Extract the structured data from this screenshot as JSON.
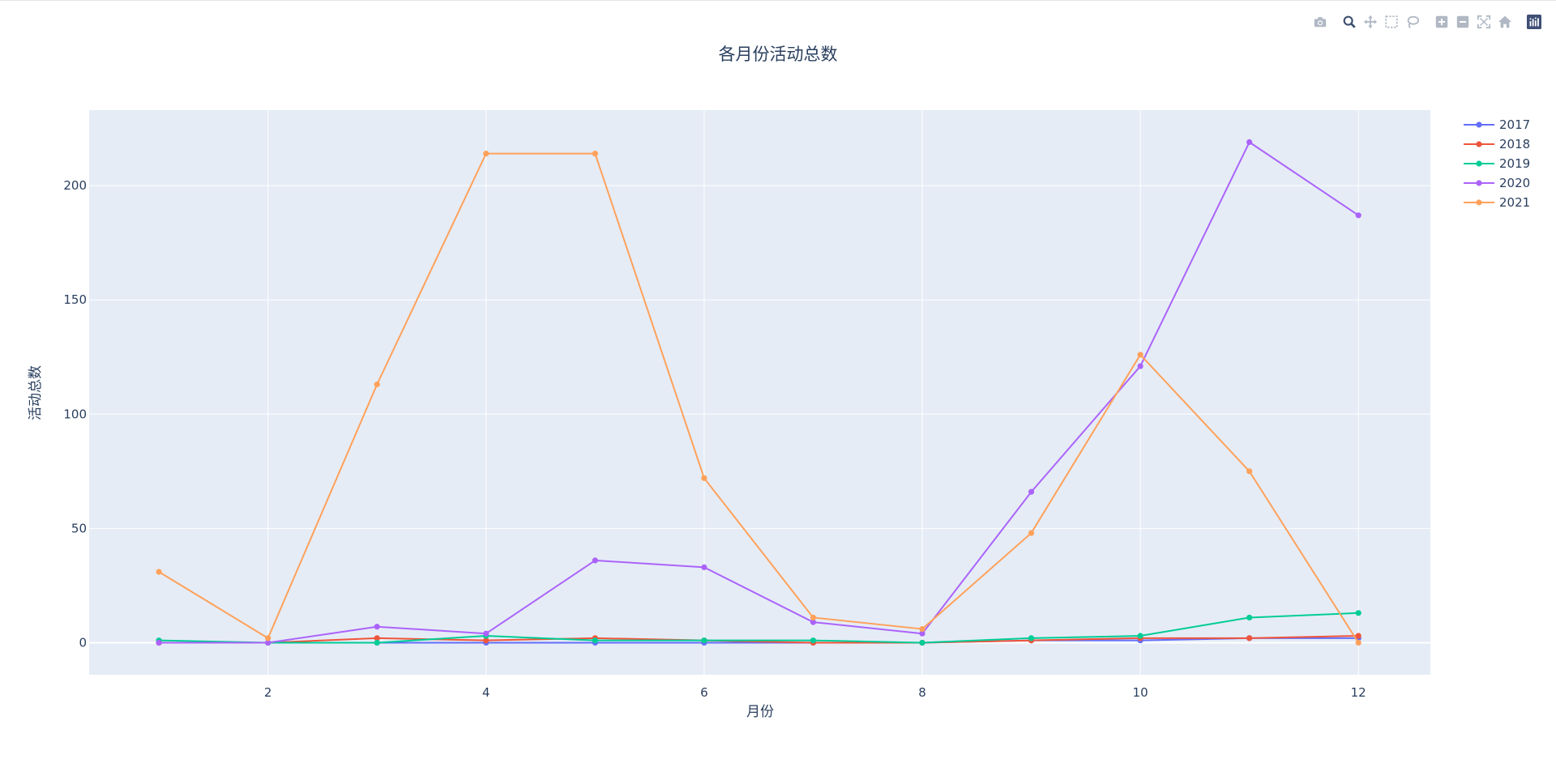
{
  "modebar": {
    "buttons": [
      {
        "icon": "camera-icon",
        "label": "Download plot as a png"
      },
      {
        "icon": "zoom-icon",
        "label": "Zoom"
      },
      {
        "icon": "pan-icon",
        "label": "Pan"
      },
      {
        "icon": "box-select-icon",
        "label": "Box Select"
      },
      {
        "icon": "lasso-select-icon",
        "label": "Lasso Select"
      },
      {
        "icon": "zoom-in-icon",
        "label": "Zoom in"
      },
      {
        "icon": "zoom-out-icon",
        "label": "Zoom out"
      },
      {
        "icon": "autoscale-icon",
        "label": "Autoscale"
      },
      {
        "icon": "reset-axes-icon",
        "label": "Reset axes"
      },
      {
        "icon": "plotly-logo-icon",
        "label": "Produced with Plotly"
      }
    ]
  },
  "chart_data": {
    "type": "line",
    "title": "各月份活动总数",
    "xlabel": "月份",
    "ylabel": "活动总数",
    "xlim": [
      0.36,
      12.66
    ],
    "ylim": [
      -14,
      233
    ],
    "xticks": [
      2,
      4,
      6,
      8,
      10,
      12
    ],
    "yticks": [
      0,
      50,
      100,
      150,
      200
    ],
    "grid": true,
    "legend_position": "top-right",
    "x": [
      1,
      2,
      3,
      4,
      5,
      6,
      7,
      8,
      9,
      10,
      11,
      12
    ],
    "series": [
      {
        "name": "2017",
        "color": "#636efa",
        "values": [
          0,
          0,
          0,
          0,
          0,
          0,
          0,
          0,
          1,
          1,
          2,
          2
        ]
      },
      {
        "name": "2018",
        "color": "#ef553b",
        "values": [
          0,
          0,
          2,
          1,
          2,
          1,
          0,
          0,
          1,
          2,
          2,
          3
        ]
      },
      {
        "name": "2019",
        "color": "#00cc96",
        "values": [
          1,
          0,
          0,
          3,
          1,
          1,
          1,
          0,
          2,
          3,
          11,
          13
        ]
      },
      {
        "name": "2020",
        "color": "#ab63fa",
        "values": [
          0,
          0,
          7,
          4,
          36,
          33,
          9,
          4,
          66,
          121,
          219,
          187
        ]
      },
      {
        "name": "2021",
        "color": "#ffa15a",
        "values": [
          31,
          2,
          113,
          214,
          214,
          72,
          11,
          6,
          48,
          126,
          75,
          0
        ]
      }
    ]
  }
}
